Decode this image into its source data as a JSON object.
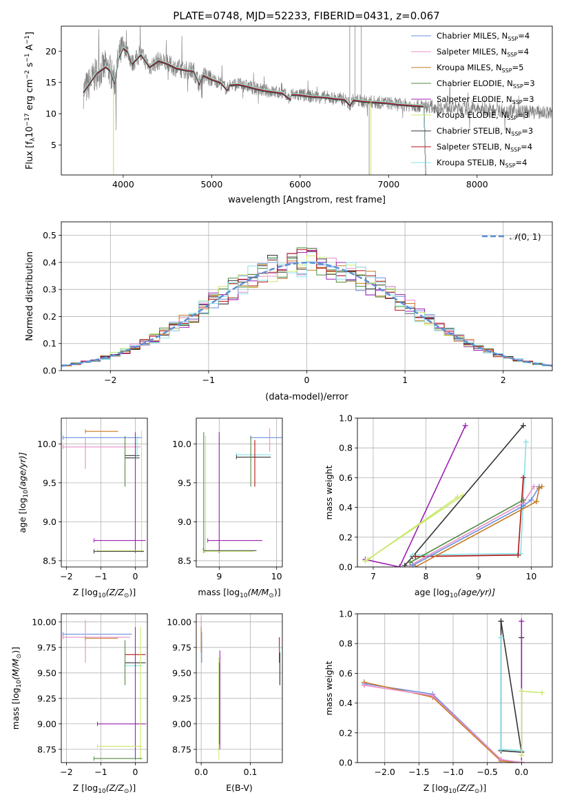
{
  "title": "PLATE=0748, MJD=52233, FIBERID=0431, z=0.067",
  "colors": {
    "Chabrier MILES": "#6a8fe0",
    "Salpeter MILES": "#e88cc7",
    "Kroupa MILES": "#c77a1e",
    "Chabrier ELODIE": "#4f8a3f",
    "Salpeter ELODIE": "#9b1fb3",
    "Kroupa ELODIE": "#c9e86a",
    "Chabrier STELIB": "#333333",
    "Salpeter STELIB": "#b01010",
    "Kroupa STELIB": "#86e0e6",
    "data": "#808080",
    "gauss": "#5b8fd6"
  },
  "chart_data": [
    {
      "id": "spectrum",
      "type": "line",
      "title": "PLATE=0748, MJD=52233, FIBERID=0431, z=0.067",
      "xlabel": "wavelength [Angstrom, rest frame]",
      "ylabel_main": "Flux [f",
      "ylabel_sub": "λ",
      "ylabel_tail": "10",
      "ylabel_exp": "−17",
      "ylabel_units": " erg cm",
      "ylabel_exp2": "−2",
      "ylabel_s": " s",
      "ylabel_exp3": "−1",
      "ylabel_A": " A",
      "ylabel_exp4": "−1",
      "ylabel_end": "]",
      "xlim": [
        3300,
        8850
      ],
      "ylim": [
        0.2,
        24
      ],
      "xticks": [
        4000,
        5000,
        6000,
        7000,
        8000
      ],
      "yticks": [
        5,
        10,
        15,
        20
      ],
      "legend": [
        {
          "name": "Chabrier MILES",
          "n": "4"
        },
        {
          "name": "Salpeter MILES",
          "n": "4"
        },
        {
          "name": "Kroupa MILES",
          "n": "5"
        },
        {
          "name": "Chabrier ELODIE",
          "n": "3"
        },
        {
          "name": "Salpeter ELODIE",
          "n": "3"
        },
        {
          "name": "Kroupa ELODIE",
          "n": "3"
        },
        {
          "name": "Chabrier STELIB",
          "n": "3"
        },
        {
          "name": "Salpeter STELIB",
          "n": "4"
        },
        {
          "name": "Kroupa STELIB",
          "n": "4"
        }
      ],
      "legend_prefix": "N",
      "legend_sub": "SSP",
      "legend_placement": "upper-right",
      "model_curve": {
        "x": [
          3550,
          3600,
          3700,
          3800,
          3850,
          3900,
          3950,
          4000,
          4050,
          4100,
          4200,
          4300,
          4400,
          4500,
          4600,
          4700,
          4800,
          4861,
          4900,
          5000,
          5100,
          5175,
          5200,
          5300,
          5400,
          5500,
          5600,
          5700,
          5800,
          5890,
          5900,
          6000,
          6100,
          6200,
          6300,
          6400,
          6500,
          6563,
          6600,
          6700,
          6800,
          6900,
          7000,
          7100,
          7200,
          7300,
          7400,
          7420
        ],
        "y": [
          13.5,
          14.5,
          16.5,
          17.5,
          17.0,
          15.0,
          19.0,
          20.5,
          20.0,
          18.0,
          19.5,
          17.5,
          18.5,
          18.0,
          17.3,
          17.0,
          16.8,
          14.8,
          16.2,
          15.5,
          15.0,
          13.8,
          14.6,
          14.7,
          14.4,
          14.0,
          13.7,
          13.5,
          13.3,
          12.3,
          13.1,
          13.0,
          12.8,
          12.7,
          12.6,
          12.4,
          12.3,
          11.4,
          12.2,
          12.0,
          11.9,
          11.8,
          11.7,
          11.5,
          11.4,
          11.3,
          11.2,
          0.2
        ]
      }
    },
    {
      "id": "residuals",
      "type": "step",
      "xlabel": "(data-model)/error",
      "ylabel": "Normed distribution",
      "xlim": [
        -2.5,
        2.5
      ],
      "ylim": [
        0,
        0.55
      ],
      "xticks": [
        -2,
        -1,
        0,
        1,
        2
      ],
      "yticks": [
        0.0,
        0.1,
        0.2,
        0.3,
        0.4,
        0.5
      ],
      "grid": true,
      "legend_label_a": "𝒩",
      "legend_label_b": "(0, 1)",
      "legend_placement": "upper-right",
      "bin_width": 0.1
    },
    {
      "id": "z-age",
      "type": "errorbar",
      "xlabel_a": "Z [log",
      "xlabel_sub": "10",
      "xlabel_b": "(Z/Z",
      "xlabel_sun": "⊙",
      "xlabel_c": ")]",
      "ylabel_a": "age  [log",
      "ylabel_sub": "10",
      "ylabel_b": "(age/yr)]",
      "xlim": [
        -2.15,
        0.35
      ],
      "ylim": [
        8.42,
        10.33
      ],
      "xticks": [
        -2,
        -1,
        0
      ],
      "yticks": [
        8.5,
        9.0,
        9.5,
        10.0
      ],
      "xtick_labels": [
        "−2",
        "−1",
        "0"
      ],
      "ytick_labels": [
        "8.5",
        "9.0",
        "9.5",
        "10.0"
      ],
      "grid": true,
      "bars": [
        {
          "model": "Chabrier MILES",
          "x": [
            -2.1,
            0.2
          ],
          "y": 10.08
        },
        {
          "model": "Salpeter MILES",
          "x": [
            -2.1,
            0.15
          ],
          "y": 9.96
        },
        {
          "model": "Salpeter MILES",
          "xv": -1.45,
          "yv": [
            9.68,
            10.08
          ]
        },
        {
          "model": "Kroupa MILES",
          "x": [
            -1.45,
            -0.5
          ],
          "y": 10.16
        },
        {
          "model": "Chabrier STELIB",
          "x": [
            -0.3,
            0.12
          ],
          "y": 9.85
        },
        {
          "model": "Chabrier STELIB",
          "x": [
            -0.3,
            0.12
          ],
          "y": 9.82
        },
        {
          "model": "Chabrier ELODIE",
          "xv": -0.3,
          "yv": [
            9.45,
            10.1
          ]
        },
        {
          "model": "Kroupa ELODIE",
          "xv": 0.18,
          "yv": [
            8.6,
            10.17
          ]
        },
        {
          "model": "Kroupa STELIB",
          "xv": 0.05,
          "yv": [
            9.8,
            10.1
          ]
        },
        {
          "model": "Salpeter ELODIE",
          "x": [
            -1.2,
            0.3
          ],
          "y": 8.76
        },
        {
          "model": "Salpeter ELODIE",
          "xv": 0.0,
          "yv": [
            8.6,
            10.15
          ]
        },
        {
          "model": "Kroupa ELODIE",
          "x": [
            -1.1,
            0.25
          ],
          "y": 8.63
        },
        {
          "model": "Chabrier STELIB",
          "x": [
            -1.2,
            0.25
          ],
          "y": 8.62
        }
      ]
    },
    {
      "id": "mass-age",
      "type": "errorbar",
      "xlabel_a": "mass [log",
      "xlabel_sub": "10",
      "xlabel_b": "(M/M",
      "xlabel_sun": "⊙",
      "xlabel_c": ")]",
      "xlim": [
        8.6,
        10.1
      ],
      "ylim": [
        8.42,
        10.33
      ],
      "xticks": [
        9,
        10
      ],
      "yticks": [
        8.5,
        9.0,
        9.5,
        10.0
      ],
      "xtick_labels": [
        "9",
        "10"
      ],
      "ytick_labels": [
        "8.5",
        "9.0",
        "9.5",
        "10.0"
      ],
      "grid": true,
      "bars": [
        {
          "model": "Chabrier MILES",
          "x": [
            9.55,
            10.1
          ],
          "y": 10.08
        },
        {
          "model": "Salpeter MILES",
          "xv": 9.88,
          "yv": [
            9.9,
            10.2
          ]
        },
        {
          "model": "Kroupa STELIB",
          "x": [
            9.3,
            9.9
          ],
          "y": 9.86
        },
        {
          "model": "Chabrier STELIB",
          "x": [
            9.3,
            9.9
          ],
          "y": 9.83
        },
        {
          "model": "Salpeter STELIB",
          "xv": 9.62,
          "yv": [
            9.45,
            10.05
          ]
        },
        {
          "model": "Chabrier ELODIE",
          "xv": 9.55,
          "yv": [
            9.45,
            10.1
          ]
        },
        {
          "model": "Chabrier ELODIE",
          "xv": 8.73,
          "yv": [
            8.6,
            10.15
          ]
        },
        {
          "model": "Kroupa ELODIE",
          "xv": 8.76,
          "yv": [
            8.6,
            10.1
          ]
        },
        {
          "model": "Salpeter ELODIE",
          "xv": 9.0,
          "yv": [
            8.6,
            10.15
          ]
        },
        {
          "model": "Salpeter ELODIE",
          "x": [
            8.8,
            9.75
          ],
          "y": 8.76
        },
        {
          "model": "Chabrier STELIB",
          "x": [
            8.72,
            9.65
          ],
          "y": 8.63
        },
        {
          "model": "Kroupa ELODIE",
          "x": [
            8.72,
            9.6
          ],
          "y": 8.62
        }
      ]
    },
    {
      "id": "age-weight",
      "type": "line",
      "xlabel_a": "age  [log",
      "xlabel_sub": "10",
      "xlabel_b": "(age/yr)]",
      "ylabel": "mass weight",
      "xlim": [
        6.7,
        10.4
      ],
      "ylim": [
        0,
        1.0
      ],
      "xticks": [
        7,
        8,
        9,
        10
      ],
      "yticks": [
        0.0,
        0.2,
        0.4,
        0.6,
        0.8,
        1.0
      ],
      "xtick_labels": [
        "7",
        "8",
        "9",
        "10"
      ],
      "ytick_labels": [
        "0.0",
        "0.2",
        "0.4",
        "0.6",
        "0.8",
        "1.0"
      ],
      "grid": true,
      "series": [
        {
          "model": "Salpeter ELODIE",
          "x": [
            6.85,
            7.5,
            8.75
          ],
          "y": [
            0.05,
            0.0,
            0.95
          ]
        },
        {
          "model": "Kroupa ELODIE",
          "x": [
            6.85,
            8.7
          ],
          "y": [
            0.04,
            0.48
          ]
        },
        {
          "model": "Kroupa ELODIE",
          "x": [
            6.9,
            8.6
          ],
          "y": [
            0.05,
            0.47
          ]
        },
        {
          "model": "Chabrier STELIB",
          "x": [
            7.6,
            7.75,
            9.85
          ],
          "y": [
            0.01,
            0.07,
            0.95
          ]
        },
        {
          "model": "Kroupa STELIB",
          "x": [
            7.75,
            9.8,
            9.9
          ],
          "y": [
            0.08,
            0.09,
            0.84
          ]
        },
        {
          "model": "Salpeter STELIB",
          "x": [
            7.8,
            9.75,
            9.85
          ],
          "y": [
            0.07,
            0.08,
            0.6
          ]
        },
        {
          "model": "Salpeter MILES",
          "x": [
            7.7,
            9.85,
            10.05
          ],
          "y": [
            0.01,
            0.43,
            0.54
          ]
        },
        {
          "model": "Chabrier MILES",
          "x": [
            7.75,
            9.85,
            10.0,
            10.15
          ],
          "y": [
            0.01,
            0.41,
            0.45,
            0.54
          ]
        },
        {
          "model": "Kroupa MILES",
          "x": [
            7.8,
            10.1,
            10.15,
            10.2
          ],
          "y": [
            0.0,
            0.44,
            0.53,
            0.54
          ]
        },
        {
          "model": "Chabrier ELODIE",
          "x": [
            7.7,
            9.85
          ],
          "y": [
            0.03,
            0.45
          ]
        }
      ]
    },
    {
      "id": "z-mass",
      "type": "errorbar",
      "xlabel_a": "Z [log",
      "xlabel_sub": "10",
      "xlabel_b": "(Z/Z",
      "xlabel_sun": "⊙",
      "xlabel_c": ")]",
      "ylabel_a": "mass [log",
      "ylabel_sub": "10",
      "ylabel_b": "(M/M",
      "ylabel_sun": "⊙",
      "ylabel_c": ")]",
      "xlim": [
        -2.15,
        0.35
      ],
      "ylim": [
        8.62,
        10.08
      ],
      "xticks": [
        -2,
        -1,
        0
      ],
      "yticks": [
        8.75,
        9.0,
        9.25,
        9.5,
        9.75,
        10.0
      ],
      "xtick_labels": [
        "−2",
        "−1",
        "0"
      ],
      "ytick_labels": [
        "8.75",
        "9.00",
        "9.25",
        "9.50",
        "9.75",
        "10.00"
      ],
      "grid": true,
      "bars": [
        {
          "model": "Chabrier MILES",
          "x": [
            -2.1,
            -0.1
          ],
          "y": 9.88
        },
        {
          "model": "Salpeter MILES",
          "x": [
            -2.1,
            -0.15
          ],
          "y": 9.85
        },
        {
          "model": "Salpeter MILES",
          "xv": -1.45,
          "yv": [
            9.6,
            10.02
          ]
        },
        {
          "model": "Kroupa MILES",
          "x": [
            -1.45,
            -0.5
          ],
          "y": 9.84
        },
        {
          "model": "Salpeter STELIB",
          "x": [
            -0.3,
            0.3
          ],
          "y": 9.68
        },
        {
          "model": "Chabrier STELIB",
          "x": [
            -0.3,
            0.3
          ],
          "y": 9.6
        },
        {
          "model": "Kroupa STELIB",
          "x": [
            -0.3,
            0.2
          ],
          "y": 9.57
        },
        {
          "model": "Chabrier ELODIE",
          "xv": -0.3,
          "yv": [
            9.38,
            9.82
          ]
        },
        {
          "model": "Salpeter ELODIE",
          "x": [
            -1.1,
            0.3
          ],
          "y": 9.0
        },
        {
          "model": "Salpeter ELODIE",
          "xv": 0.0,
          "yv": [
            8.65,
            9.95
          ]
        },
        {
          "model": "Kroupa ELODIE",
          "x": [
            -1.1,
            0.2
          ],
          "y": 8.78
        },
        {
          "model": "Kroupa ELODIE",
          "xv": 0.15,
          "yv": [
            8.65,
            9.95
          ]
        },
        {
          "model": "Chabrier ELODIE",
          "x": [
            -1.2,
            0.2
          ],
          "y": 8.66
        }
      ]
    },
    {
      "id": "ebv-mass",
      "type": "errorbar",
      "xlabel": "E(B-V)",
      "xlim": [
        -0.01,
        0.165
      ],
      "ylim": [
        8.62,
        10.08
      ],
      "xticks": [
        0.0,
        0.1
      ],
      "yticks": [
        8.75,
        9.0,
        9.25,
        9.5,
        9.75,
        10.0
      ],
      "xtick_labels": [
        "0.0",
        "0.1"
      ],
      "ytick_labels": [
        "8.75",
        "9.00",
        "9.25",
        "9.50",
        "9.75",
        "10.00"
      ],
      "grid": true,
      "bars": [
        {
          "model": "Salpeter MILES",
          "xv": 0.0,
          "yv": [
            9.8,
            10.05
          ]
        },
        {
          "model": "Kroupa MILES",
          "xv": 0.0,
          "yv": [
            9.7,
            9.95
          ]
        },
        {
          "model": "Chabrier MILES",
          "xv": 0.001,
          "yv": [
            9.6,
            9.9
          ]
        },
        {
          "model": "Kroupa ELODIE",
          "xv": 0.036,
          "yv": [
            8.65,
            9.65
          ]
        },
        {
          "model": "Salpeter ELODIE",
          "xv": 0.038,
          "yv": [
            8.75,
            9.72
          ]
        },
        {
          "model": "Chabrier ELODIE",
          "xv": 0.037,
          "yv": [
            8.8,
            9.6
          ]
        },
        {
          "model": "Salpeter STELIB",
          "xv": 0.159,
          "yv": [
            9.6,
            9.85
          ]
        },
        {
          "model": "Kroupa STELIB",
          "xv": 0.16,
          "yv": [
            9.4,
            9.76
          ]
        },
        {
          "model": "Chabrier STELIB",
          "xv": 0.16,
          "yv": [
            9.38,
            9.7
          ]
        }
      ]
    },
    {
      "id": "z-weight",
      "type": "line",
      "xlabel_a": "Z [log",
      "xlabel_sub": "10",
      "xlabel_b": "(Z/Z",
      "xlabel_sun": "⊙",
      "xlabel_c": ")]",
      "ylabel": "mass weight",
      "xlim": [
        -2.4,
        0.45
      ],
      "ylim": [
        0,
        1.0
      ],
      "xticks": [
        -2.0,
        -1.5,
        -1.0,
        -0.5,
        0.0
      ],
      "yticks": [
        0.0,
        0.2,
        0.4,
        0.6,
        0.8,
        1.0
      ],
      "xtick_labels": [
        "−2.0",
        "−1.5",
        "−1.0",
        "−0.5",
        "0.0"
      ],
      "ytick_labels": [
        "0.0",
        "0.2",
        "0.4",
        "0.6",
        "0.8",
        "1.0"
      ],
      "grid": true,
      "series": [
        {
          "model": "Chabrier STELIB",
          "x": [
            -0.3,
            -0.3,
            0.0,
            0.0
          ],
          "y": [
            0.95,
            0.08,
            0.07,
            0.84
          ]
        },
        {
          "model": "Chabrier STELIB",
          "x": [
            -0.3,
            0.0
          ],
          "y": [
            0.95,
            0.07
          ]
        },
        {
          "model": "Kroupa STELIB",
          "x": [
            -0.3,
            -0.3,
            0.0
          ],
          "y": [
            0.84,
            0.09,
            0.08
          ]
        },
        {
          "model": "Salpeter ELODIE",
          "x": [
            0.0,
            0.0
          ],
          "y": [
            0.95,
            0.0
          ]
        },
        {
          "model": "Kroupa ELODIE",
          "x": [
            0.0,
            0.0,
            0.3
          ],
          "y": [
            0.05,
            0.48,
            0.47
          ]
        },
        {
          "model": "Chabrier MILES",
          "x": [
            -2.3,
            -1.3,
            -0.3,
            0.0
          ],
          "y": [
            0.53,
            0.46,
            0.02,
            0.0
          ]
        },
        {
          "model": "Kroupa MILES",
          "x": [
            -2.3,
            -1.3,
            -0.3,
            0.0
          ],
          "y": [
            0.54,
            0.44,
            0.01,
            0.0
          ]
        },
        {
          "model": "Salpeter MILES",
          "x": [
            -2.3,
            -1.3,
            -0.3,
            0.0
          ],
          "y": [
            0.52,
            0.45,
            0.02,
            0.0
          ]
        }
      ]
    }
  ]
}
